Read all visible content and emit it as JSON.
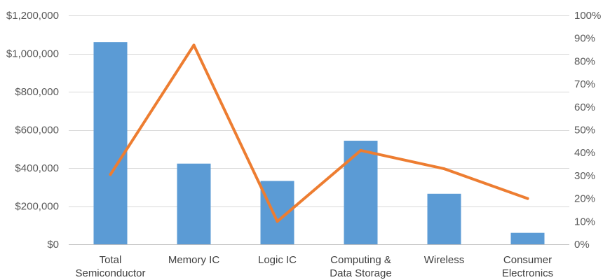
{
  "chart_data": {
    "type": "bar",
    "title": "",
    "xlabel": "",
    "ylabel": "",
    "categories": [
      [
        "Total",
        "Semiconductor"
      ],
      [
        "Memory IC"
      ],
      [
        "Logic IC"
      ],
      [
        "Computing &",
        "Data Storage"
      ],
      [
        "Wireless"
      ],
      [
        "Consumer",
        "Electronics"
      ]
    ],
    "bar_series": {
      "values": [
        1060000,
        423000,
        332000,
        543000,
        265000,
        60000
      ],
      "color": "#5B9BD5",
      "axis": "left"
    },
    "line_series": {
      "values": [
        0.305,
        0.87,
        0.1,
        0.41,
        0.33,
        0.2
      ],
      "color": "#ED7D31",
      "axis": "right"
    },
    "left_axis": {
      "ylim": [
        0,
        1200000
      ],
      "ticks": [
        0,
        200000,
        400000,
        600000,
        800000,
        1000000,
        1200000
      ],
      "tick_labels": [
        "$0",
        "$200,000",
        "$400,000",
        "$600,000",
        "$800,000",
        "$1,000,000",
        "$1,200,000"
      ]
    },
    "right_axis": {
      "ylim": [
        0,
        1
      ],
      "ticks": [
        0,
        0.1,
        0.2,
        0.3,
        0.4,
        0.5,
        0.6,
        0.7,
        0.8,
        0.9,
        1.0
      ],
      "tick_labels": [
        "0%",
        "10%",
        "20%",
        "30%",
        "40%",
        "50%",
        "60%",
        "70%",
        "80%",
        "90%",
        "100%"
      ]
    },
    "grid": true,
    "legend": "none"
  }
}
